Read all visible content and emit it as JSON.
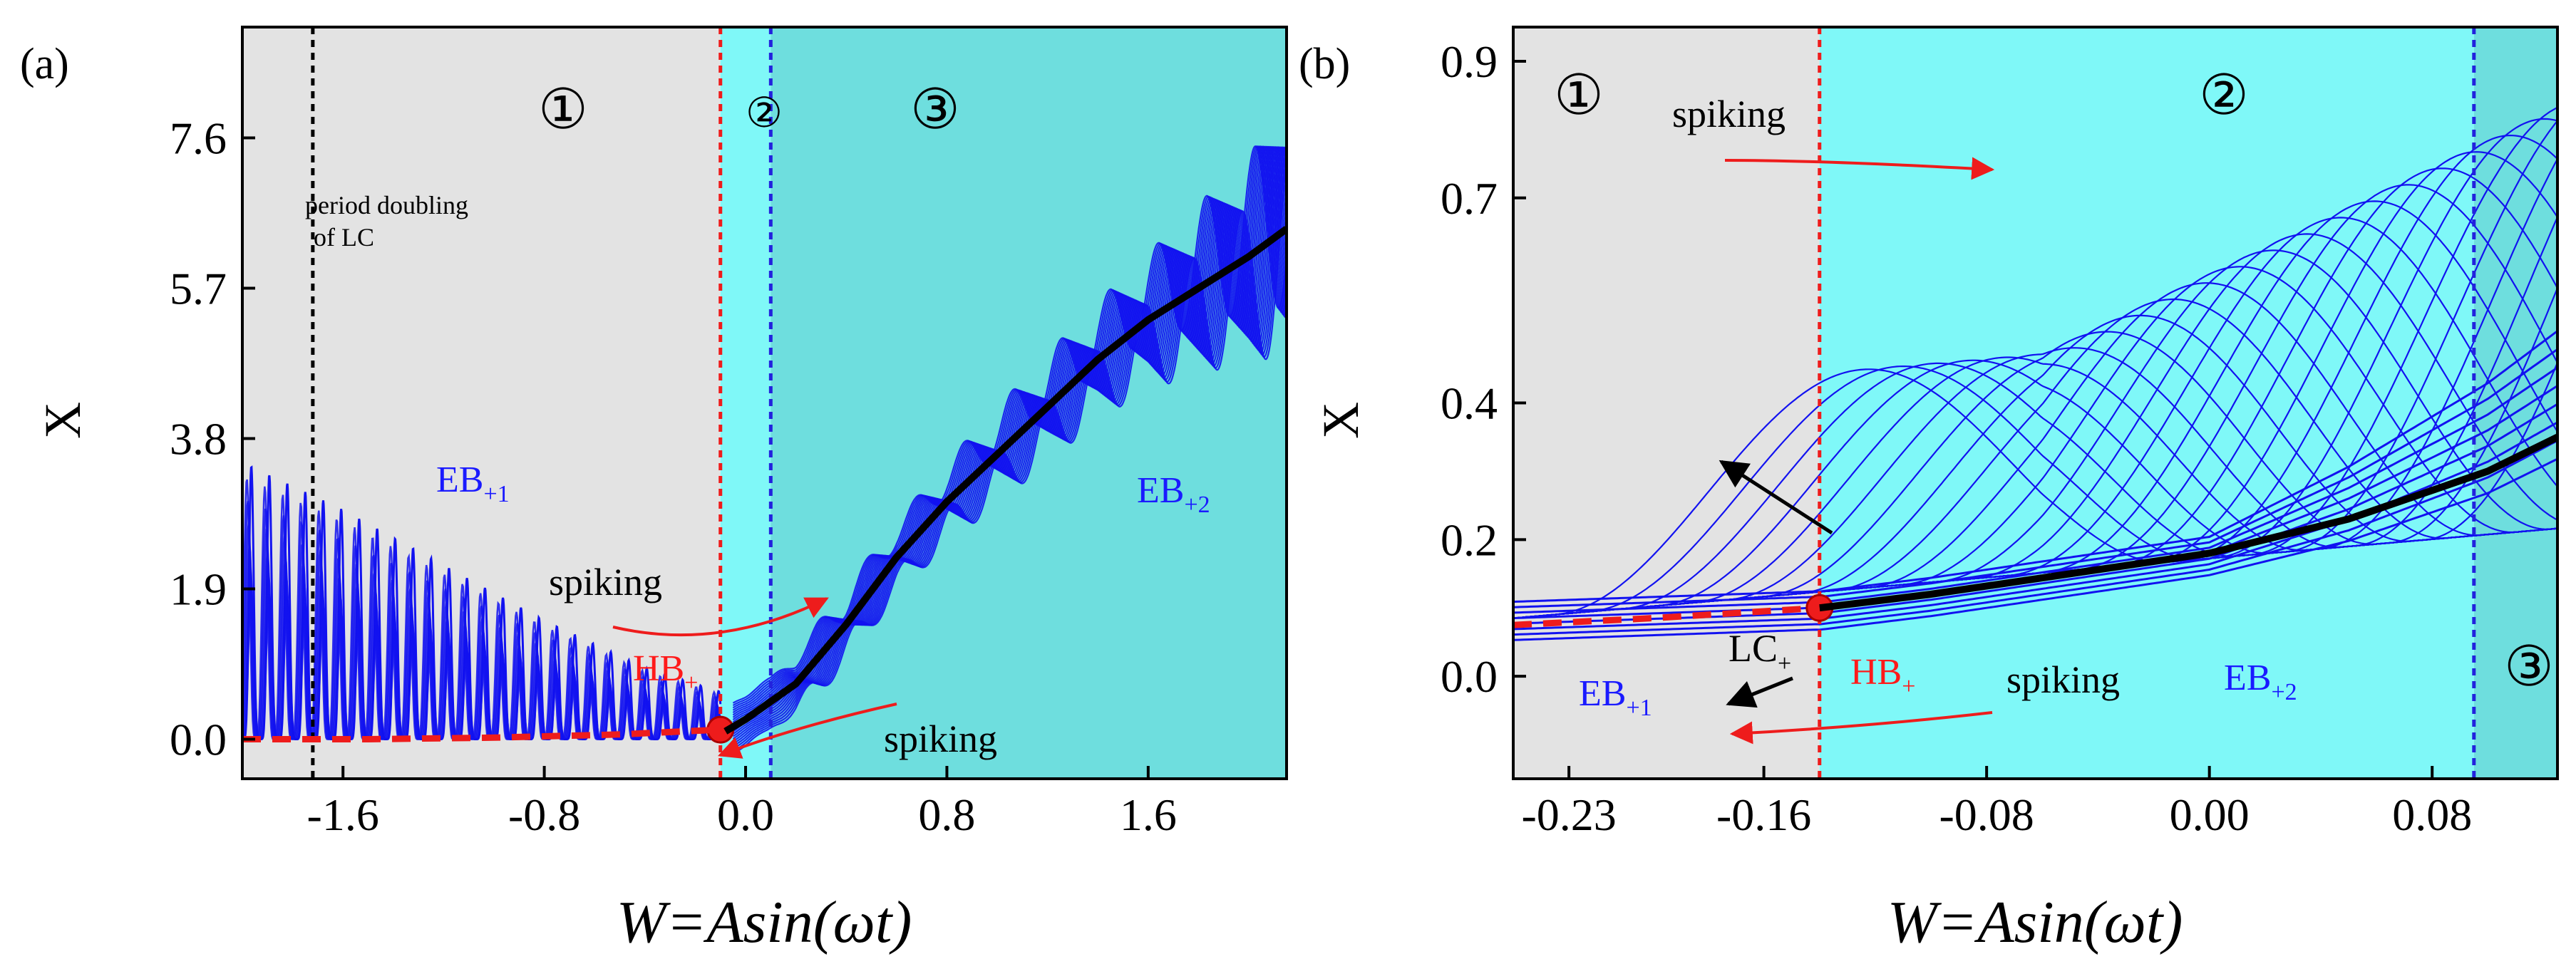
{
  "colors": {
    "region1": "#e3e3e3",
    "region2": "#7ff8f8",
    "region3": "#6edede",
    "orbit": "#1212f0",
    "equilibrium": "#000000",
    "unstable": "#ee1c1c",
    "separator_red": "#ee1c1c",
    "separator_blue": "#2222dd",
    "separator_black": "#000000"
  },
  "chart_data": [
    {
      "type": "line",
      "panel_label": "(a)",
      "xlabel": "W=Asin(ωt)",
      "ylabel": "X",
      "xlim": [
        -2.0,
        2.15
      ],
      "ylim": [
        -0.5,
        9.0
      ],
      "xticks": [
        -1.6,
        -0.8,
        0.0,
        0.8,
        1.6
      ],
      "xtick_labels": [
        "-1.6",
        "-0.8",
        "0.0",
        "0.8",
        "1.6"
      ],
      "yticks": [
        0.0,
        1.9,
        3.8,
        5.7,
        7.6
      ],
      "ytick_labels": [
        "0.0",
        "1.9",
        "3.8",
        "5.7",
        "7.6"
      ],
      "regions": [
        {
          "label": "①",
          "x_from": -2.0,
          "x_to": -0.1,
          "color_key": "region1"
        },
        {
          "label": "②",
          "x_from": -0.1,
          "x_to": 0.1,
          "color_key": "region2"
        },
        {
          "label": "③",
          "x_from": 0.1,
          "x_to": 2.15,
          "color_key": "region3"
        }
      ],
      "separators": [
        {
          "x": -1.72,
          "color_key": "separator_black"
        },
        {
          "x": -0.1,
          "color_key": "separator_red"
        },
        {
          "x": 0.1,
          "color_key": "separator_blue"
        }
      ],
      "series": [
        {
          "name": "stable equilibrium",
          "style": "solid-black",
          "x": [
            -0.08,
            0.0,
            0.2,
            0.4,
            0.6,
            0.8,
            1.0,
            1.2,
            1.4,
            1.6,
            1.8,
            2.0,
            2.15
          ],
          "y": [
            0.1,
            0.25,
            0.7,
            1.45,
            2.3,
            3.0,
            3.6,
            4.2,
            4.8,
            5.3,
            5.7,
            6.1,
            6.45
          ]
        },
        {
          "name": "unstable equilibrium",
          "style": "dashed-red",
          "x": [
            -2.0,
            -1.5,
            -1.0,
            -0.5,
            -0.1
          ],
          "y": [
            0.0,
            0.0,
            0.02,
            0.06,
            0.12
          ]
        },
        {
          "name": "EB+1 spiking envelope",
          "style": "blue-oscillation",
          "x": [
            -2.0,
            -1.6,
            -1.2,
            -0.8,
            -0.4,
            -0.1
          ],
          "y": [
            3.5,
            2.9,
            2.2,
            1.5,
            0.9,
            0.6
          ]
        },
        {
          "name": "EB+2 spiking envelope",
          "style": "blue-oscillation",
          "x": [
            0.1,
            0.4,
            0.8,
            1.2,
            1.6,
            2.0,
            2.15
          ],
          "y": [
            0.5,
            1.8,
            3.4,
            4.9,
            6.3,
            7.9,
            8.8
          ]
        }
      ],
      "hopf_point": {
        "x": -0.1,
        "y": 0.12
      },
      "annotations": [
        {
          "id": "pd",
          "text_lines": [
            "period doubling",
            "of LC"
          ]
        },
        {
          "id": "eb1",
          "text": "EB",
          "sub": "+1"
        },
        {
          "id": "eb2",
          "text": "EB",
          "sub": "+2"
        },
        {
          "id": "hb",
          "text": "HB",
          "sub": "+"
        },
        {
          "id": "spk1",
          "text": "spiking"
        },
        {
          "id": "spk2",
          "text": "spiking"
        }
      ]
    },
    {
      "type": "line",
      "panel_label": "(b)",
      "xlabel": "W=Asin(ωt)",
      "ylabel": "X",
      "xlim": [
        -0.25,
        0.125
      ],
      "ylim": [
        -0.15,
        0.95
      ],
      "xticks": [
        -0.23,
        -0.16,
        -0.08,
        0.0,
        0.08
      ],
      "xtick_labels": [
        "-0.23",
        "-0.16",
        "-0.08",
        "0.00",
        "0.08"
      ],
      "yticks": [
        0.0,
        0.2,
        0.4,
        0.7,
        0.9
      ],
      "ytick_labels": [
        "0.0",
        "0.2",
        "0.4",
        "0.7",
        "0.9"
      ],
      "regions": [
        {
          "label": "①",
          "x_from": -0.25,
          "x_to": -0.14,
          "color_key": "region1"
        },
        {
          "label": "②",
          "x_from": -0.14,
          "x_to": 0.095,
          "color_key": "region2"
        },
        {
          "label": "③",
          "x_from": 0.095,
          "x_to": 0.125,
          "color_key": "region3"
        }
      ],
      "separators": [
        {
          "x": -0.14,
          "color_key": "separator_red"
        },
        {
          "x": 0.095,
          "color_key": "separator_blue"
        }
      ],
      "series": [
        {
          "name": "stable equilibrium",
          "style": "solid-black",
          "x": [
            -0.14,
            -0.1,
            -0.05,
            0.0,
            0.05,
            0.1,
            0.125
          ],
          "y": [
            0.1,
            0.12,
            0.15,
            0.18,
            0.23,
            0.3,
            0.35
          ]
        },
        {
          "name": "unstable equilibrium",
          "style": "dashed-red",
          "x": [
            -0.25,
            -0.2,
            -0.16,
            -0.14
          ],
          "y": [
            0.075,
            0.085,
            0.095,
            0.1
          ]
        }
      ],
      "hopf_point": {
        "x": -0.14,
        "y": 0.1
      },
      "annotations": [
        {
          "id": "spk-top",
          "text": "spiking"
        },
        {
          "id": "spk-bot",
          "text": "spiking"
        },
        {
          "id": "lc",
          "text": "LC",
          "sub": "+"
        },
        {
          "id": "hb",
          "text": "HB",
          "sub": "+"
        },
        {
          "id": "eb1",
          "text": "EB",
          "sub": "+1"
        },
        {
          "id": "eb2",
          "text": "EB",
          "sub": "+2"
        }
      ]
    }
  ]
}
